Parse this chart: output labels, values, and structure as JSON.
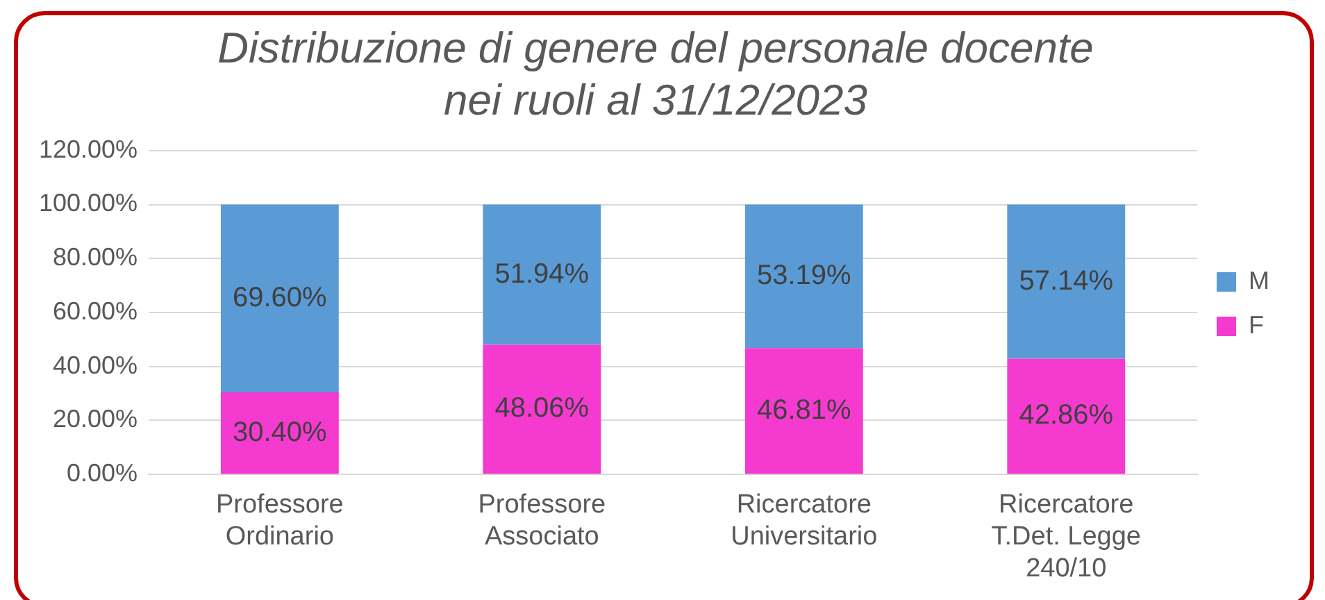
{
  "chart_data": {
    "type": "bar",
    "stacked": true,
    "title": "Distribuzione di genere del personale docente nei ruoli al 31/12/2023",
    "categories": [
      "Professore Ordinario",
      "Professore Associato",
      "Ricercatore Universitario",
      "Ricercatore T.Det. Legge 240/10"
    ],
    "series": [
      {
        "name": "F",
        "color": "#f53ad0",
        "values": [
          30.4,
          48.06,
          46.81,
          42.86
        ],
        "value_labels": [
          "30.40%",
          "48.06%",
          "46.81%",
          "42.86%"
        ]
      },
      {
        "name": "M",
        "color": "#5b9bd5",
        "values": [
          69.6,
          51.94,
          53.19,
          57.14
        ],
        "value_labels": [
          "69.60%",
          "51.94%",
          "53.19%",
          "57.14%"
        ]
      }
    ],
    "ylim": [
      0,
      120
    ],
    "yticks": [
      {
        "value": 0,
        "label": "0.00%"
      },
      {
        "value": 20,
        "label": "20.00%"
      },
      {
        "value": 40,
        "label": "40.00%"
      },
      {
        "value": 60,
        "label": "60.00%"
      },
      {
        "value": 80,
        "label": "80.00%"
      },
      {
        "value": 100,
        "label": "100.00%"
      },
      {
        "value": 120,
        "label": "120.00%"
      }
    ],
    "grid": "y",
    "legend": "right"
  }
}
